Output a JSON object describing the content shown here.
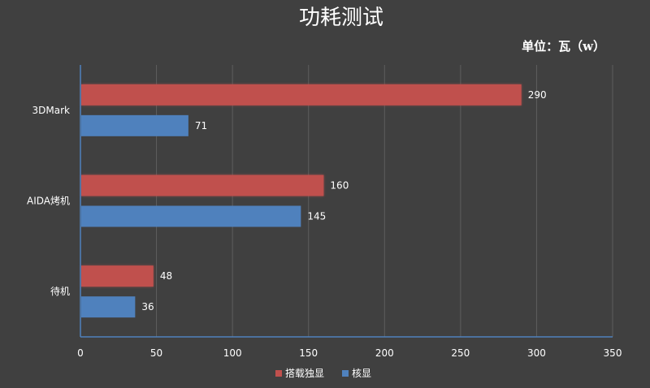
{
  "chart_data": {
    "type": "bar",
    "orientation": "horizontal",
    "title": "功耗测试",
    "unit_label": "单位：瓦（w）",
    "categories": [
      "3DMark",
      "AIDA烤机",
      "待机"
    ],
    "series": [
      {
        "name": "搭载独显",
        "color": "#c0504d",
        "values": [
          290,
          160,
          48
        ]
      },
      {
        "name": "核显",
        "color": "#4f81bd",
        "values": [
          71,
          145,
          36
        ]
      }
    ],
    "xlim": [
      0,
      350
    ],
    "x_ticks": [
      0,
      50,
      100,
      150,
      200,
      250,
      300,
      350
    ],
    "grid": true,
    "legend_position": "bottom"
  }
}
